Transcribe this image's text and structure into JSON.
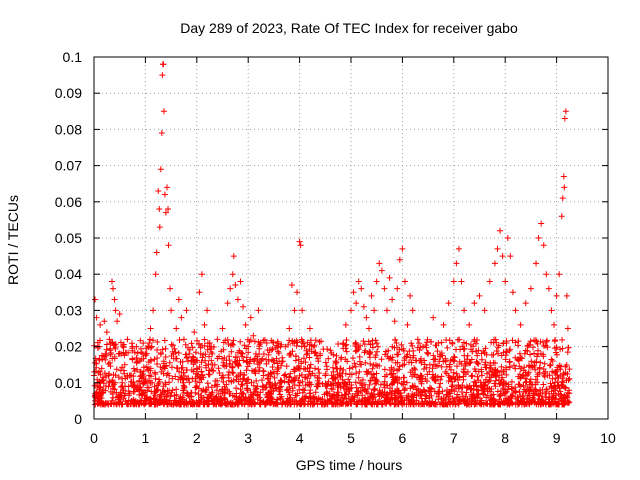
{
  "chart_data": {
    "type": "scatter",
    "title": "Day 289 of 2023, Rate Of TEC Index for receiver gabo",
    "xlabel": "GPS time / hours",
    "ylabel": "ROTI / TECUs",
    "xlim": [
      0,
      10
    ],
    "ylim": [
      0,
      0.1
    ],
    "x_ticks": [
      {
        "value": 0,
        "label": "0"
      },
      {
        "value": 1,
        "label": "1"
      },
      {
        "value": 2,
        "label": "2"
      },
      {
        "value": 3,
        "label": "3"
      },
      {
        "value": 4,
        "label": "4"
      },
      {
        "value": 5,
        "label": "5"
      },
      {
        "value": 6,
        "label": "6"
      },
      {
        "value": 7,
        "label": "7"
      },
      {
        "value": 8,
        "label": "8"
      },
      {
        "value": 9,
        "label": "9"
      },
      {
        "value": 10,
        "label": "10"
      }
    ],
    "y_ticks": [
      {
        "value": 0,
        "label": "0"
      },
      {
        "value": 0.01,
        "label": "0.01"
      },
      {
        "value": 0.02,
        "label": "0.02"
      },
      {
        "value": 0.03,
        "label": "0.03"
      },
      {
        "value": 0.04,
        "label": "0.04"
      },
      {
        "value": 0.05,
        "label": "0.05"
      },
      {
        "value": 0.06,
        "label": "0.06"
      },
      {
        "value": 0.07,
        "label": "0.07"
      },
      {
        "value": 0.08,
        "label": "0.08"
      },
      {
        "value": 0.09,
        "label": "0.09"
      },
      {
        "value": 0.1,
        "label": "0.1"
      }
    ],
    "grid": true,
    "marker": "+",
    "colors": {
      "series": "#ff0000",
      "grid": "#a0a0a0",
      "axis": "#000000"
    },
    "series": [
      {
        "name": "ROTI",
        "points": [
          [
            0.0,
            0.012
          ],
          [
            0.02,
            0.033
          ],
          [
            0.05,
            0.028
          ],
          [
            0.08,
            0.01
          ],
          [
            0.1,
            0.02
          ],
          [
            0.12,
            0.026
          ],
          [
            0.15,
            0.014
          ],
          [
            0.18,
            0.008
          ],
          [
            0.2,
            0.027
          ],
          [
            0.22,
            0.018
          ],
          [
            0.25,
            0.024
          ],
          [
            0.28,
            0.012
          ],
          [
            0.3,
            0.022
          ],
          [
            0.32,
            0.019
          ],
          [
            0.35,
            0.038
          ],
          [
            0.37,
            0.036
          ],
          [
            0.4,
            0.033
          ],
          [
            0.42,
            0.03
          ],
          [
            0.45,
            0.027
          ],
          [
            0.48,
            0.018
          ],
          [
            0.5,
            0.029
          ],
          [
            0.55,
            0.01
          ],
          [
            0.6,
            0.015
          ],
          [
            0.65,
            0.022
          ],
          [
            0.7,
            0.012
          ],
          [
            0.75,
            0.02
          ],
          [
            0.8,
            0.009
          ],
          [
            0.85,
            0.016
          ],
          [
            0.9,
            0.013
          ],
          [
            0.95,
            0.018
          ],
          [
            1.0,
            0.011
          ],
          [
            1.05,
            0.02
          ],
          [
            1.1,
            0.025
          ],
          [
            1.15,
            0.03
          ],
          [
            1.2,
            0.04
          ],
          [
            1.22,
            0.046
          ],
          [
            1.25,
            0.063
          ],
          [
            1.27,
            0.058
          ],
          [
            1.28,
            0.053
          ],
          [
            1.3,
            0.069
          ],
          [
            1.32,
            0.079
          ],
          [
            1.33,
            0.095
          ],
          [
            1.34,
            0.098
          ],
          [
            1.35,
            0.098
          ],
          [
            1.36,
            0.085
          ],
          [
            1.38,
            0.062
          ],
          [
            1.4,
            0.057
          ],
          [
            1.42,
            0.064
          ],
          [
            1.44,
            0.058
          ],
          [
            1.45,
            0.048
          ],
          [
            1.48,
            0.036
          ],
          [
            1.5,
            0.03
          ],
          [
            1.55,
            0.018
          ],
          [
            1.6,
            0.025
          ],
          [
            1.65,
            0.033
          ],
          [
            1.7,
            0.028
          ],
          [
            1.75,
            0.022
          ],
          [
            1.8,
            0.03
          ],
          [
            1.85,
            0.018
          ],
          [
            1.9,
            0.016
          ],
          [
            1.95,
            0.024
          ],
          [
            2.0,
            0.014
          ],
          [
            2.05,
            0.035
          ],
          [
            2.1,
            0.04
          ],
          [
            2.15,
            0.026
          ],
          [
            2.2,
            0.03
          ],
          [
            2.25,
            0.021
          ],
          [
            2.3,
            0.018
          ],
          [
            2.35,
            0.015
          ],
          [
            2.4,
            0.022
          ],
          [
            2.5,
            0.025
          ],
          [
            2.6,
            0.032
          ],
          [
            2.65,
            0.036
          ],
          [
            2.7,
            0.04
          ],
          [
            2.72,
            0.045
          ],
          [
            2.75,
            0.037
          ],
          [
            2.8,
            0.033
          ],
          [
            2.85,
            0.038
          ],
          [
            2.9,
            0.031
          ],
          [
            2.95,
            0.026
          ],
          [
            3.0,
            0.02
          ],
          [
            3.05,
            0.028
          ],
          [
            3.1,
            0.023
          ],
          [
            3.15,
            0.018
          ],
          [
            3.2,
            0.03
          ],
          [
            3.25,
            0.016
          ],
          [
            3.3,
            0.012
          ],
          [
            3.4,
            0.016
          ],
          [
            3.5,
            0.013
          ],
          [
            3.6,
            0.016
          ],
          [
            3.7,
            0.012
          ],
          [
            3.8,
            0.025
          ],
          [
            3.85,
            0.037
          ],
          [
            3.9,
            0.03
          ],
          [
            3.95,
            0.035
          ],
          [
            4.0,
            0.049
          ],
          [
            4.02,
            0.048
          ],
          [
            4.05,
            0.03
          ],
          [
            4.1,
            0.02
          ],
          [
            4.2,
            0.025
          ],
          [
            4.3,
            0.014
          ],
          [
            4.4,
            0.018
          ],
          [
            4.5,
            0.012
          ],
          [
            4.6,
            0.019
          ],
          [
            4.7,
            0.016
          ],
          [
            4.8,
            0.014
          ],
          [
            4.9,
            0.026
          ],
          [
            5.0,
            0.03
          ],
          [
            5.05,
            0.035
          ],
          [
            5.1,
            0.032
          ],
          [
            5.15,
            0.038
          ],
          [
            5.2,
            0.036
          ],
          [
            5.25,
            0.031
          ],
          [
            5.3,
            0.028
          ],
          [
            5.35,
            0.025
          ],
          [
            5.4,
            0.034
          ],
          [
            5.45,
            0.03
          ],
          [
            5.5,
            0.038
          ],
          [
            5.55,
            0.043
          ],
          [
            5.6,
            0.041
          ],
          [
            5.65,
            0.036
          ],
          [
            5.7,
            0.03
          ],
          [
            5.75,
            0.039
          ],
          [
            5.8,
            0.033
          ],
          [
            5.85,
            0.027
          ],
          [
            5.9,
            0.036
          ],
          [
            5.95,
            0.044
          ],
          [
            6.0,
            0.047
          ],
          [
            6.05,
            0.038
          ],
          [
            6.1,
            0.026
          ],
          [
            6.15,
            0.034
          ],
          [
            6.2,
            0.03
          ],
          [
            6.3,
            0.022
          ],
          [
            6.4,
            0.02
          ],
          [
            6.5,
            0.018
          ],
          [
            6.6,
            0.028
          ],
          [
            6.7,
            0.021
          ],
          [
            6.8,
            0.026
          ],
          [
            6.9,
            0.032
          ],
          [
            7.0,
            0.038
          ],
          [
            7.05,
            0.043
          ],
          [
            7.1,
            0.047
          ],
          [
            7.15,
            0.038
          ],
          [
            7.2,
            0.03
          ],
          [
            7.3,
            0.026
          ],
          [
            7.4,
            0.032
          ],
          [
            7.5,
            0.034
          ],
          [
            7.6,
            0.03
          ],
          [
            7.7,
            0.038
          ],
          [
            7.8,
            0.043
          ],
          [
            7.85,
            0.047
          ],
          [
            7.9,
            0.052
          ],
          [
            7.95,
            0.045
          ],
          [
            8.0,
            0.038
          ],
          [
            8.05,
            0.05
          ],
          [
            8.1,
            0.045
          ],
          [
            8.15,
            0.035
          ],
          [
            8.2,
            0.03
          ],
          [
            8.3,
            0.026
          ],
          [
            8.4,
            0.032
          ],
          [
            8.5,
            0.036
          ],
          [
            8.6,
            0.043
          ],
          [
            8.65,
            0.05
          ],
          [
            8.7,
            0.054
          ],
          [
            8.75,
            0.048
          ],
          [
            8.8,
            0.04
          ],
          [
            8.85,
            0.036
          ],
          [
            8.9,
            0.03
          ],
          [
            8.95,
            0.026
          ],
          [
            9.0,
            0.034
          ],
          [
            9.05,
            0.04
          ],
          [
            9.1,
            0.056
          ],
          [
            9.12,
            0.061
          ],
          [
            9.14,
            0.067
          ],
          [
            9.15,
            0.064
          ],
          [
            9.16,
            0.083
          ],
          [
            9.18,
            0.085
          ],
          [
            9.2,
            0.034
          ],
          [
            9.22,
            0.025
          ]
        ]
      }
    ]
  }
}
